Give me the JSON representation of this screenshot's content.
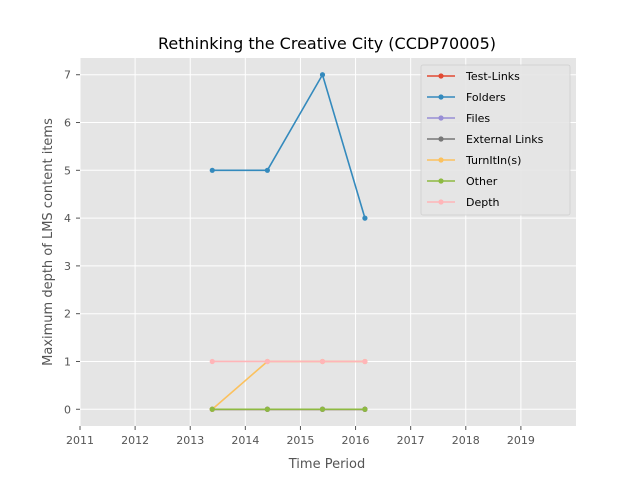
{
  "chart_data": {
    "type": "line",
    "title": "Rethinking the Creative City (CCDP70005)",
    "xlabel": "Time Period",
    "ylabel": "Maximum depth of LMS content items",
    "xlim": [
      2011,
      2020
    ],
    "ylim": [
      -0.35,
      7.35
    ],
    "xticks": [
      "2011",
      "2012",
      "2013",
      "2014",
      "2015",
      "2016",
      "2017",
      "2018",
      "2019"
    ],
    "yticks": [
      "0",
      "1",
      "2",
      "3",
      "4",
      "5",
      "6",
      "7"
    ],
    "grid": true,
    "legend_position": "top-right",
    "series": [
      {
        "name": "Test-Links",
        "color": "#E24A33",
        "x": [
          2013.4,
          2014.4,
          2015.4,
          2016.17
        ],
        "y": [
          0,
          0,
          0,
          0
        ]
      },
      {
        "name": "Folders",
        "color": "#348ABD",
        "x": [
          2013.4,
          2014.4,
          2015.4,
          2016.17
        ],
        "y": [
          5,
          5,
          7,
          4
        ]
      },
      {
        "name": "Files",
        "color": "#988ED5",
        "x": [
          2013.4,
          2014.4,
          2015.4,
          2016.17
        ],
        "y": [
          0,
          0,
          0,
          0
        ]
      },
      {
        "name": "External Links",
        "color": "#777777",
        "x": [
          2013.4,
          2014.4,
          2015.4,
          2016.17
        ],
        "y": [
          0,
          0,
          0,
          0
        ]
      },
      {
        "name": "TurnItIn(s)",
        "color": "#FBC15E",
        "x": [
          2013.4,
          2014.4,
          2015.4,
          2016.17
        ],
        "y": [
          0,
          1,
          1,
          1
        ]
      },
      {
        "name": "Other",
        "color": "#8EBA42",
        "x": [
          2013.4,
          2014.4,
          2015.4,
          2016.17
        ],
        "y": [
          0,
          0,
          0,
          0
        ]
      },
      {
        "name": "Depth",
        "color": "#FFB5B8",
        "x": [
          2013.4,
          2014.4,
          2015.4,
          2016.17
        ],
        "y": [
          1,
          1,
          1,
          1
        ]
      }
    ]
  }
}
